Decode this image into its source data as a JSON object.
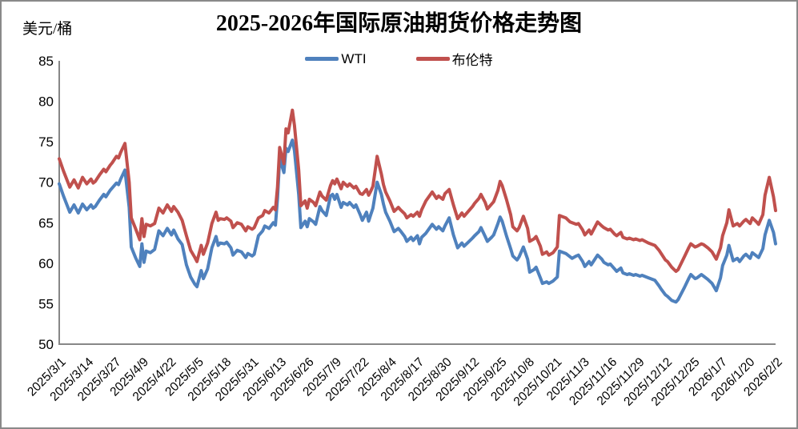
{
  "header": {
    "title": "2025-2026年国际原油期货价格走势图",
    "y_axis_unit": "美元/桶"
  },
  "legend": {
    "items": [
      {
        "label": "WTI",
        "color": "#4F81BD"
      },
      {
        "label": "布伦特",
        "color": "#C0504D"
      }
    ]
  },
  "chart_data": {
    "type": "line",
    "title": "2025-2026年国际原油期货价格走势图",
    "ylabel": "美元/桶",
    "grid": false,
    "legend_position": "top-center",
    "axis_color": "#878787",
    "text_color": "#000000",
    "ylim": [
      50,
      85
    ],
    "y_ticks": [
      50,
      55,
      60,
      65,
      70,
      75,
      80,
      85
    ],
    "x_tick_labels": [
      "2025/3/1",
      "2025/3/14",
      "2025/3/27",
      "2025/4/9",
      "2025/4/22",
      "2025/5/5",
      "2025/5/18",
      "2025/5/31",
      "2025/6/13",
      "2025/6/26",
      "2025/7/9",
      "2025/7/22",
      "2025/8/4",
      "2025/8/17",
      "2025/8/30",
      "2025/9/12",
      "2025/9/25",
      "2025/10/8",
      "2025/10/21",
      "2025/11/3",
      "2025/11/16",
      "2025/11/29",
      "2025/12/12",
      "2025/12/25",
      "2026/1/7",
      "2026/1/20",
      "2026/2/2"
    ],
    "x_tick_interval_days": 13,
    "x_days_range": [
      0,
      338
    ],
    "x_days": [
      0,
      2,
      5,
      7,
      9,
      11,
      13,
      15,
      16,
      17,
      19,
      21,
      22,
      24,
      25,
      27,
      28,
      29,
      31,
      33,
      34,
      36,
      38,
      39,
      40,
      41,
      43,
      45,
      47,
      49,
      51,
      53,
      54,
      56,
      58,
      60,
      62,
      64,
      65,
      67,
      68,
      70,
      72,
      74,
      75,
      76,
      78,
      79,
      81,
      82,
      84,
      86,
      88,
      89,
      91,
      92,
      94,
      96,
      97,
      99,
      101,
      102,
      103,
      104,
      106,
      107,
      108,
      110,
      111,
      113,
      114,
      116,
      117,
      118,
      120,
      121,
      123,
      124,
      126,
      128,
      129,
      130,
      131,
      133,
      134,
      136,
      137,
      139,
      140,
      142,
      143,
      145,
      146,
      147,
      148,
      150,
      152,
      153,
      154,
      156,
      158,
      160,
      161,
      163,
      164,
      166,
      167,
      169,
      170,
      171,
      173,
      176,
      178,
      179,
      181,
      182,
      184,
      186,
      188,
      190,
      191,
      193,
      195,
      196,
      198,
      199,
      201,
      202,
      204,
      205,
      207,
      208,
      209,
      211,
      213,
      214,
      216,
      217,
      219,
      221,
      222,
      224,
      225,
      227,
      228,
      230,
      231,
      233,
      235,
      236,
      238,
      239,
      241,
      242,
      244,
      245,
      247,
      248,
      250,
      251,
      254,
      256,
      257,
      259,
      260,
      262,
      263,
      265,
      266,
      268,
      269,
      271,
      272,
      274,
      275,
      278,
      281,
      283,
      284,
      286,
      287,
      289,
      291,
      292,
      295,
      297,
      298,
      300,
      301,
      303,
      304,
      306,
      308,
      310,
      312,
      313,
      315,
      316,
      318,
      320,
      321,
      323,
      324,
      326,
      327,
      329,
      330,
      332,
      333,
      335,
      337,
      338
    ],
    "series": [
      {
        "name": "WTI",
        "color": "#4F81BD",
        "values": [
          69.8,
          68.3,
          66.3,
          67.2,
          66.2,
          67.3,
          66.6,
          67.2,
          66.8,
          67.0,
          67.8,
          68.5,
          68.2,
          69.0,
          69.3,
          69.9,
          69.7,
          70.4,
          71.5,
          66.9,
          62.0,
          60.7,
          59.6,
          62.4,
          60.1,
          61.5,
          61.3,
          61.7,
          64.0,
          63.4,
          64.3,
          63.5,
          64.1,
          63.0,
          62.3,
          59.8,
          58.3,
          57.4,
          57.1,
          59.1,
          58.1,
          59.3,
          61.9,
          63.3,
          62.2,
          62.5,
          62.4,
          62.6,
          61.9,
          61.0,
          61.6,
          61.4,
          60.7,
          61.2,
          60.9,
          61.1,
          63.4,
          64.0,
          64.6,
          64.3,
          65.0,
          64.7,
          68.0,
          73.0,
          71.2,
          74.2,
          73.8,
          75.2,
          73.9,
          68.5,
          64.4,
          65.2,
          64.5,
          65.5,
          65.1,
          64.8,
          67.0,
          66.5,
          65.9,
          68.3,
          68.5,
          67.9,
          68.5,
          66.9,
          67.5,
          67.2,
          67.5,
          66.9,
          67.2,
          66.0,
          65.3,
          66.3,
          65.2,
          66.0,
          66.8,
          70.0,
          68.5,
          67.3,
          66.3,
          65.2,
          63.9,
          64.3,
          64.0,
          63.3,
          62.7,
          63.2,
          62.8,
          63.4,
          62.4,
          63.2,
          63.7,
          64.8,
          64.2,
          64.5,
          64.0,
          64.6,
          65.6,
          63.5,
          61.9,
          62.5,
          62.1,
          62.6,
          63.1,
          63.4,
          63.9,
          64.4,
          63.3,
          62.7,
          63.2,
          63.5,
          64.9,
          65.7,
          65.2,
          63.4,
          61.8,
          60.9,
          60.4,
          60.8,
          62.0,
          60.5,
          58.9,
          59.2,
          59.5,
          58.2,
          57.5,
          57.7,
          57.5,
          57.8,
          58.3,
          61.5,
          61.3,
          61.2,
          60.8,
          60.6,
          60.9,
          61.0,
          60.2,
          59.6,
          60.2,
          59.8,
          61.0,
          60.5,
          60.1,
          59.8,
          59.9,
          59.3,
          59.0,
          59.4,
          58.8,
          58.6,
          58.7,
          58.5,
          58.6,
          58.4,
          58.5,
          58.2,
          57.9,
          57.2,
          56.8,
          56.1,
          55.9,
          55.4,
          55.2,
          55.5,
          57.0,
          58.1,
          58.6,
          58.1,
          58.2,
          58.6,
          58.4,
          58.0,
          57.5,
          56.6,
          58.2,
          59.7,
          61.0,
          62.2,
          60.3,
          60.6,
          60.2,
          60.9,
          61.1,
          60.6,
          61.3,
          60.9,
          60.7,
          61.8,
          63.5,
          65.3,
          63.8,
          62.4
        ]
      },
      {
        "name": "布伦特",
        "color": "#C0504D",
        "values": [
          72.9,
          71.4,
          69.4,
          70.3,
          69.3,
          70.6,
          69.8,
          70.4,
          69.9,
          70.1,
          70.9,
          71.6,
          71.3,
          72.1,
          72.4,
          73.2,
          73.0,
          73.7,
          74.8,
          70.0,
          65.6,
          64.3,
          62.9,
          65.5,
          63.3,
          64.8,
          64.6,
          64.9,
          66.8,
          66.2,
          67.2,
          66.4,
          67.0,
          66.3,
          65.3,
          63.4,
          61.6,
          60.7,
          60.2,
          62.2,
          61.1,
          62.5,
          64.9,
          66.3,
          65.3,
          65.5,
          65.4,
          65.6,
          65.2,
          64.4,
          65.0,
          64.8,
          64.0,
          64.5,
          64.2,
          64.4,
          65.6,
          65.9,
          66.5,
          66.2,
          66.9,
          66.6,
          69.4,
          74.3,
          72.3,
          76.6,
          76.1,
          78.9,
          77.0,
          71.5,
          67.1,
          67.7,
          66.8,
          67.9,
          67.5,
          67.1,
          68.8,
          68.3,
          67.8,
          69.6,
          70.2,
          69.8,
          70.4,
          69.2,
          70.0,
          69.5,
          69.8,
          69.3,
          69.5,
          68.6,
          68.5,
          69.1,
          68.4,
          68.9,
          69.5,
          73.2,
          71.0,
          69.7,
          68.8,
          67.7,
          66.4,
          66.9,
          66.6,
          66.1,
          65.6,
          66.0,
          65.8,
          66.3,
          65.8,
          66.6,
          67.7,
          68.8,
          68.0,
          68.3,
          67.9,
          68.6,
          69.1,
          67.2,
          65.5,
          66.2,
          65.8,
          66.4,
          67.0,
          67.4,
          68.0,
          68.5,
          67.5,
          66.7,
          67.3,
          67.6,
          69.0,
          70.1,
          69.6,
          67.9,
          66.0,
          64.5,
          64.0,
          64.4,
          65.8,
          64.3,
          62.7,
          63.0,
          63.3,
          62.1,
          61.1,
          61.4,
          61.0,
          61.3,
          62.0,
          65.9,
          65.7,
          65.6,
          65.1,
          65.0,
          64.8,
          64.9,
          64.1,
          63.5,
          64.1,
          63.6,
          65.1,
          64.6,
          64.4,
          64.1,
          64.2,
          63.6,
          63.4,
          63.8,
          63.2,
          63.0,
          63.1,
          62.9,
          63.0,
          62.8,
          62.9,
          62.5,
          62.2,
          61.6,
          61.2,
          60.4,
          60.2,
          59.5,
          59.0,
          59.2,
          60.8,
          61.9,
          62.4,
          62.0,
          62.1,
          62.4,
          62.3,
          61.9,
          61.4,
          60.5,
          61.9,
          63.4,
          65.0,
          66.6,
          64.6,
          64.9,
          64.6,
          65.2,
          65.4,
          64.9,
          65.6,
          65.1,
          64.8,
          66.0,
          68.4,
          70.6,
          68.2,
          66.5
        ]
      }
    ]
  }
}
